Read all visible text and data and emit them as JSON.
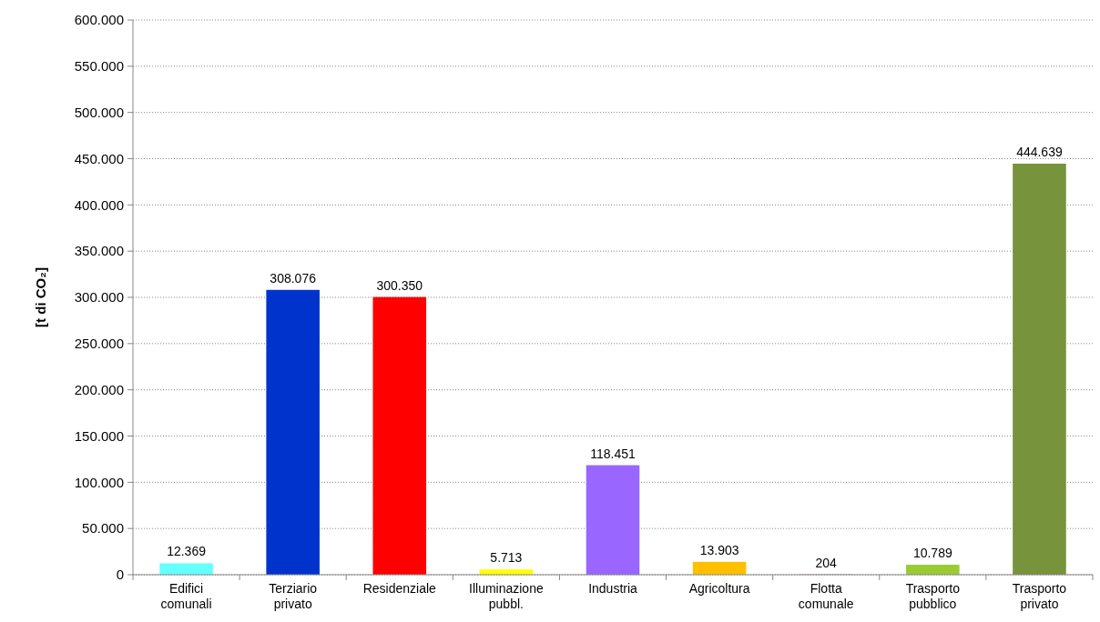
{
  "chart_data": {
    "type": "bar",
    "ylabel": "[t di CO₂]",
    "categories": [
      "Edifici comunali",
      "Terziario privato",
      "Residenziale",
      "Illuminazione pubbl.",
      "Industria",
      "Agricoltura",
      "Flotta comunale",
      "Trasporto pubblico",
      "Trasporto privato"
    ],
    "values": [
      12369,
      308076,
      300350,
      5713,
      118451,
      13903,
      204,
      10789,
      444639
    ],
    "colors": [
      "#66ffff",
      "#0033cc",
      "#ff0000",
      "#ffff00",
      "#9966ff",
      "#ffc000",
      "#993366",
      "#99cc33",
      "#77933c"
    ],
    "value_labels": [
      "12.369",
      "308.076",
      "300.350",
      "5.713",
      "118.451",
      "13.903",
      "204",
      "10.789",
      "444.639"
    ],
    "ylim": [
      0,
      600000
    ],
    "yticks": [
      {
        "value": 0,
        "label": "0"
      },
      {
        "value": 50000,
        "label": "50.000"
      },
      {
        "value": 100000,
        "label": "100.000"
      },
      {
        "value": 150000,
        "label": "150.000"
      },
      {
        "value": 200000,
        "label": "200.000"
      },
      {
        "value": 250000,
        "label": "250.000"
      },
      {
        "value": 300000,
        "label": "300.000"
      },
      {
        "value": 350000,
        "label": "350.000"
      },
      {
        "value": 400000,
        "label": "400.000"
      },
      {
        "value": 450000,
        "label": "450.000"
      },
      {
        "value": 500000,
        "label": "500.000"
      },
      {
        "value": 550000,
        "label": "550.000"
      },
      {
        "value": 600000,
        "label": "600.000"
      }
    ],
    "grid": "y"
  }
}
